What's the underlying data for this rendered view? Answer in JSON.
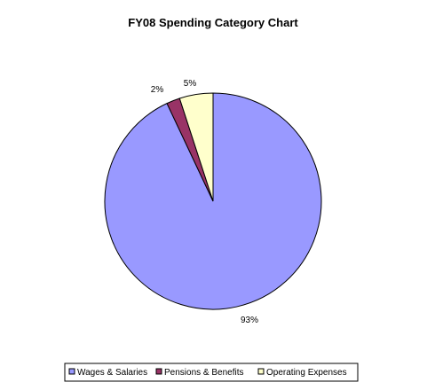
{
  "chart_data": {
    "type": "pie",
    "title": "FY08 Spending Category Chart",
    "legend_position": "bottom",
    "slices": [
      {
        "name": "Wages & Salaries",
        "value": 93,
        "label": "93%",
        "color": "#9999FF"
      },
      {
        "name": "Pensions & Benefits",
        "value": 2,
        "label": "2%",
        "color": "#993366"
      },
      {
        "name": "Operating Expenses",
        "value": 5,
        "label": "5%",
        "color": "#FFFFCC"
      }
    ]
  }
}
